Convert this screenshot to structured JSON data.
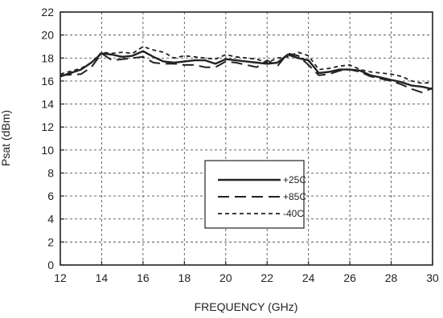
{
  "chart_data": {
    "type": "line",
    "title": "",
    "xlabel": "FREQUENCY (GHz)",
    "ylabel": "Psat (dBm)",
    "xlim": [
      12,
      30
    ],
    "ylim": [
      0,
      22
    ],
    "xticks": [
      12,
      14,
      16,
      18,
      20,
      22,
      24,
      26,
      28,
      30
    ],
    "yticks": [
      0,
      2,
      4,
      6,
      8,
      10,
      12,
      14,
      16,
      18,
      20,
      22
    ],
    "grid": true,
    "legend_position": "center-right",
    "x": [
      12,
      13,
      13.5,
      14,
      14.5,
      15,
      15.5,
      16,
      16.5,
      17,
      17.5,
      18,
      18.5,
      19,
      19.5,
      20,
      20.5,
      21,
      21.5,
      22,
      22.5,
      23,
      23.5,
      24,
      24.5,
      25,
      25.5,
      26,
      26.5,
      27,
      27.5,
      28,
      28.5,
      29,
      29.5,
      30
    ],
    "series": [
      {
        "name": "+25C",
        "color": "#222222",
        "dash": "solid",
        "values": [
          16.4,
          17.0,
          17.6,
          18.4,
          18.3,
          18.1,
          18.2,
          18.6,
          18.1,
          17.7,
          17.6,
          17.7,
          17.8,
          17.8,
          17.5,
          17.9,
          17.8,
          17.7,
          17.6,
          17.5,
          17.6,
          18.3,
          18.0,
          17.8,
          16.7,
          16.8,
          17.0,
          17.0,
          16.9,
          16.5,
          16.3,
          16.1,
          15.9,
          15.6,
          15.5,
          15.3
        ]
      },
      {
        "name": "+85C",
        "color": "#222222",
        "dash": "long-dash",
        "values": [
          16.5,
          16.6,
          17.2,
          18.4,
          17.8,
          17.9,
          18.0,
          18.1,
          17.6,
          17.5,
          17.5,
          17.4,
          17.4,
          17.2,
          17.2,
          17.7,
          17.6,
          17.4,
          17.2,
          17.8,
          17.3,
          18.4,
          18.2,
          17.4,
          16.5,
          16.6,
          16.9,
          17.0,
          16.8,
          16.4,
          16.2,
          16.0,
          15.7,
          15.3,
          15.0,
          15.4
        ]
      },
      {
        "name": "-40C",
        "color": "#222222",
        "dash": "short-dash",
        "values": [
          16.6,
          17.1,
          17.6,
          18.5,
          18.4,
          18.5,
          18.4,
          19.0,
          18.7,
          18.5,
          18.0,
          18.2,
          18.1,
          18.0,
          17.9,
          18.3,
          18.1,
          18.0,
          17.9,
          17.6,
          18.0,
          18.1,
          18.5,
          18.2,
          17.0,
          17.1,
          17.3,
          17.4,
          17.0,
          16.8,
          16.7,
          16.6,
          16.4,
          16.0,
          15.8,
          15.9
        ]
      }
    ]
  }
}
